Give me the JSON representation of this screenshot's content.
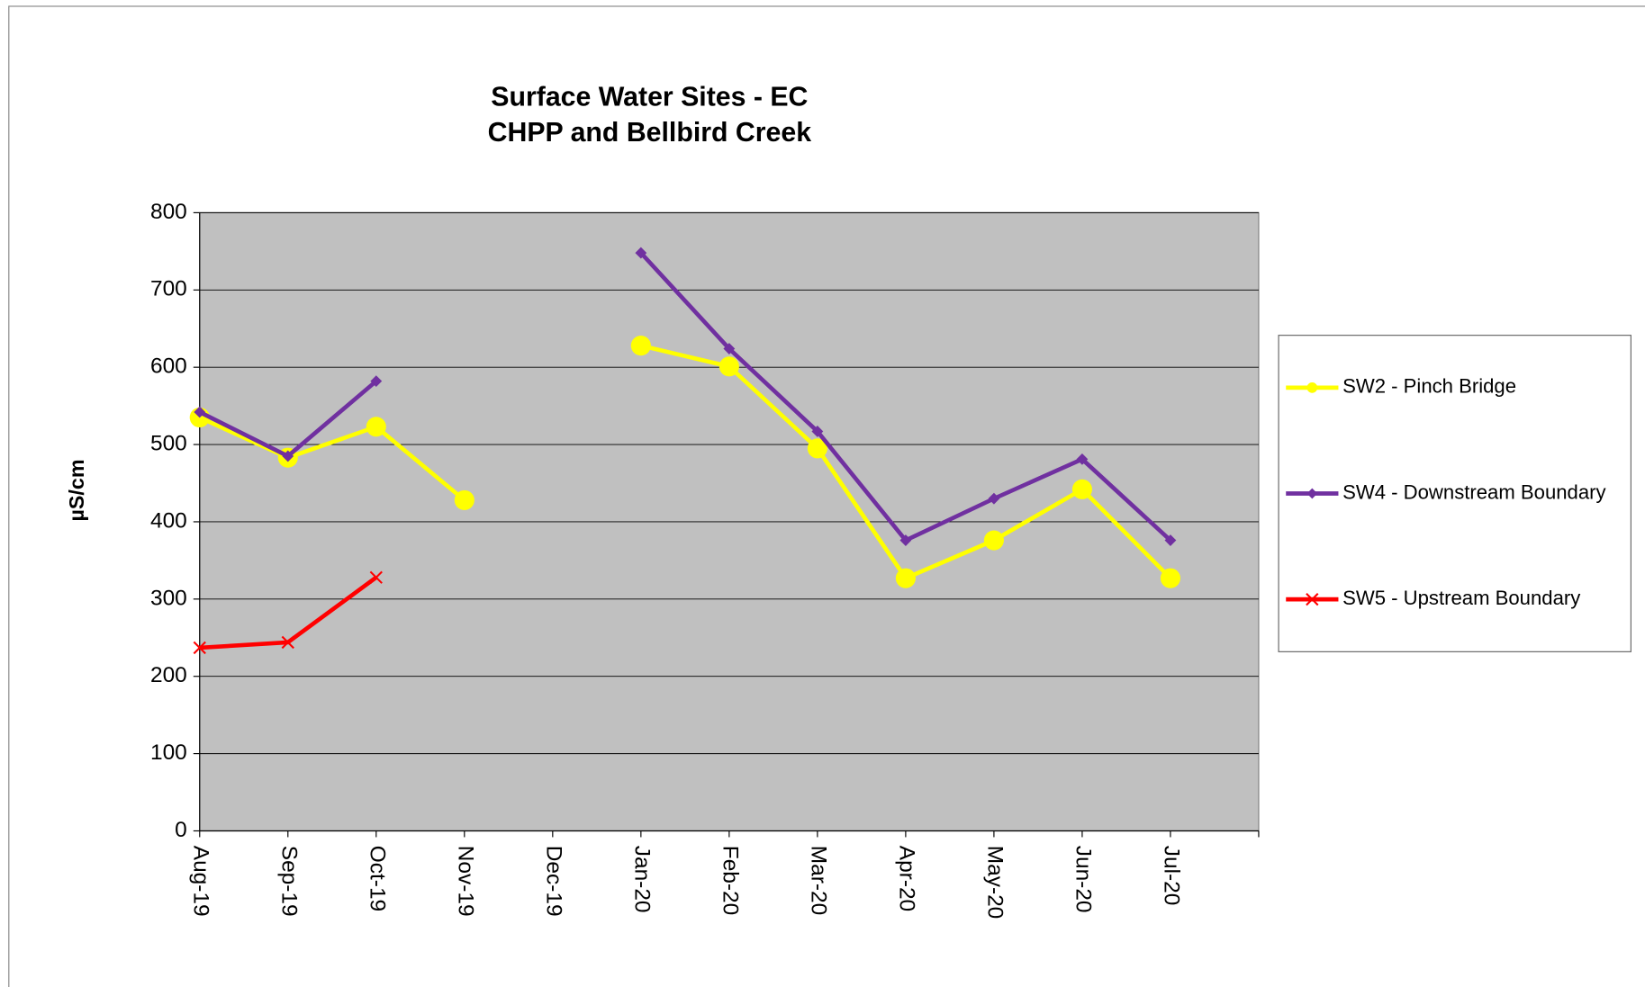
{
  "chart_data": {
    "type": "line",
    "title": [
      "Surface Water Sites - EC",
      "CHPP and Bellbird Creek"
    ],
    "y_label": "µS/cm",
    "categories": [
      "Aug-19",
      "Sep-19",
      "Oct-19",
      "Nov-19",
      "Dec-19",
      "Jan-20",
      "Feb-20",
      "Mar-20",
      "Apr-20",
      "May-20",
      "Jun-20",
      "Jul-20",
      null
    ],
    "series": [
      {
        "name": "SW2 - Pinch Bridge",
        "color": "#ffff00",
        "marker": "circle",
        "values": [
          535,
          483,
          523,
          428,
          null,
          628,
          601,
          495,
          327,
          376,
          442,
          327,
          null
        ]
      },
      {
        "name": "SW4 - Downstream Boundary",
        "color": "#7030a0",
        "marker": "diamond",
        "values": [
          542,
          485,
          582,
          null,
          null,
          748,
          624,
          517,
          376,
          430,
          481,
          376,
          null
        ]
      },
      {
        "name": "SW5 - Upstream Boundary",
        "color": "#ff0000",
        "marker": "x",
        "values": [
          237,
          244,
          328,
          null,
          null,
          null,
          null,
          null,
          null,
          null,
          null,
          null,
          null
        ]
      }
    ],
    "ylim": [
      0,
      800
    ],
    "yticks": [
      0,
      100,
      200,
      300,
      400,
      500,
      600,
      700,
      800
    ],
    "grid": true,
    "plot_background": "#c0c0c0",
    "legend": "right"
  }
}
